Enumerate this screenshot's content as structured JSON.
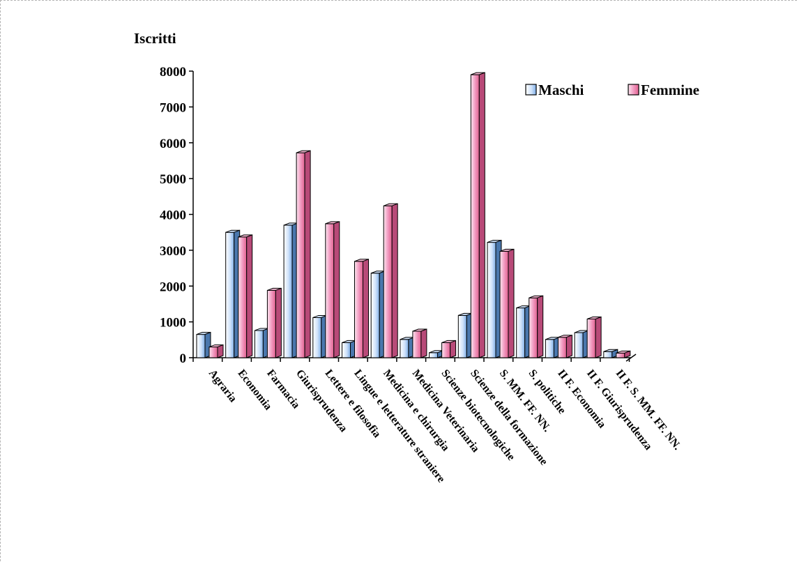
{
  "chart_data": {
    "type": "bar",
    "ylabel": "Iscritti",
    "xlabel": "",
    "title": "",
    "ylim": [
      0,
      8000
    ],
    "yticks": [
      0,
      1000,
      2000,
      3000,
      4000,
      5000,
      6000,
      7000,
      8000
    ],
    "legend_position": "top-right",
    "categories": [
      "Agraria",
      "Economia",
      "Farmacia",
      "Giurisprudenza",
      "Lettere e filosofia",
      "Lingue e letterature straniere",
      "Medicina e chirurgia",
      "Medicina Veterinaria",
      "Scienze biotecnologiche",
      "Scienze della formazione",
      "S. MM. FF. NN.",
      "S. politiche",
      "II F. Economia",
      "II F. Giurisprudenza",
      "II F. S. MM. FF. NN."
    ],
    "series": [
      {
        "name": "Maschi",
        "color": "#9cc3f2",
        "values": [
          650,
          3500,
          760,
          3700,
          1120,
          420,
          2360,
          510,
          140,
          1180,
          3220,
          1390,
          510,
          700,
          170
        ]
      },
      {
        "name": "Femmine",
        "color": "#ee7fae",
        "values": [
          300,
          3370,
          1880,
          5720,
          3740,
          2690,
          4240,
          740,
          420,
          7900,
          2970,
          1670,
          570,
          1080,
          130
        ]
      }
    ]
  }
}
